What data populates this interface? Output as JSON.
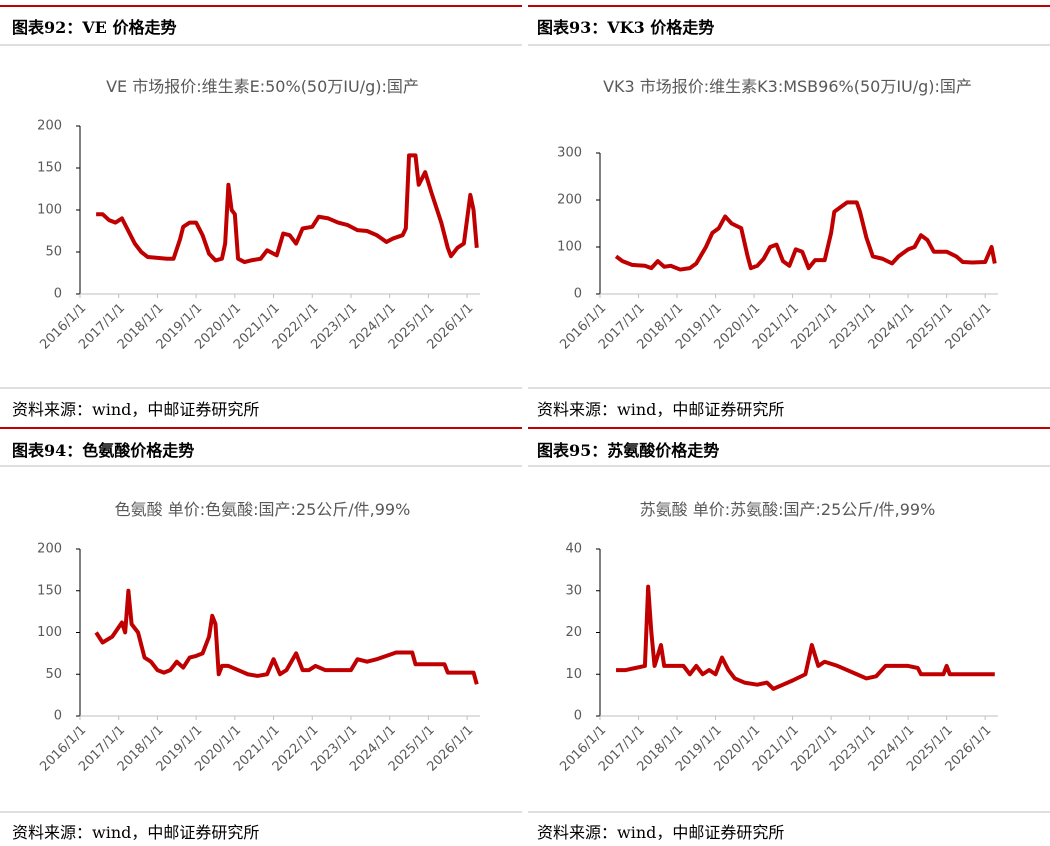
{
  "chart_data": [
    {
      "type": "line",
      "heading": "图表92：VE 价格走势",
      "title": "VE 市场报价:维生素E:50%(50万IU/g):国产",
      "source": "资料来源：wind，中邮证券研究所",
      "x": [
        "2016/6/1",
        "2016/8/1",
        "2016/10/1",
        "2016/12/1",
        "2017/2/1",
        "2017/4/1",
        "2017/6/1",
        "2017/8/1",
        "2017/10/1",
        "2018/1/1",
        "2018/4/1",
        "2018/6/1",
        "2018/8/1",
        "2018/9/1",
        "2018/11/1",
        "2019/1/1",
        "2019/3/1",
        "2019/5/1",
        "2019/7/1",
        "2019/9/1",
        "2019/10/1",
        "2019/11/1",
        "2019/12/1",
        "2020/1/1",
        "2020/2/1",
        "2020/4/1",
        "2020/6/1",
        "2020/9/1",
        "2020/11/1",
        "2021/2/1",
        "2021/4/1",
        "2021/6/1",
        "2021/8/1",
        "2021/10/1",
        "2022/1/1",
        "2022/3/1",
        "2022/6/1",
        "2022/9/1",
        "2022/12/1",
        "2023/3/1",
        "2023/6/1",
        "2023/9/1",
        "2023/12/1",
        "2024/2/1",
        "2024/5/1",
        "2024/6/1",
        "2024/7/1",
        "2024/9/1",
        "2024/10/1",
        "2024/12/1",
        "2025/2/1",
        "2025/5/1",
        "2025/7/1",
        "2025/8/1",
        "2025/10/1",
        "2025/12/1",
        "2026/2/1",
        "2026/3/1",
        "2026/4/1"
      ],
      "series": [
        {
          "color": "#c00000",
          "values": [
            95,
            95,
            88,
            85,
            90,
            75,
            60,
            50,
            44,
            43,
            42,
            42,
            65,
            80,
            85,
            85,
            70,
            48,
            40,
            42,
            60,
            130,
            100,
            95,
            42,
            38,
            40,
            42,
            52,
            46,
            72,
            70,
            60,
            78,
            80,
            92,
            90,
            85,
            82,
            76,
            75,
            70,
            62,
            66,
            70,
            78,
            165,
            165,
            130,
            145,
            120,
            85,
            55,
            45,
            55,
            60,
            118,
            100,
            55
          ]
        }
      ],
      "xlim": [
        "2016/1/1",
        "2026/5/1"
      ],
      "xticks": [
        "2016/1/1",
        "2017/1/1",
        "2018/1/1",
        "2019/1/1",
        "2020/1/1",
        "2021/1/1",
        "2022/1/1",
        "2023/1/1",
        "2024/1/1",
        "2025/1/1",
        "2026/1/1"
      ],
      "ylim": [
        0,
        200
      ],
      "yticks": [
        0,
        50,
        100,
        150,
        200
      ]
    },
    {
      "type": "line",
      "heading": "图表93：VK3 价格走势",
      "title": "VK3 市场报价:维生素K3:MSB96%(50万IU/g):国产",
      "source": "资料来源：wind，中邮证券研究所",
      "x": [
        "2016/6/1",
        "2016/8/1",
        "2016/11/1",
        "2017/3/1",
        "2017/5/1",
        "2017/7/1",
        "2017/9/1",
        "2017/11/1",
        "2018/2/1",
        "2018/5/1",
        "2018/7/1",
        "2018/10/1",
        "2018/12/1",
        "2019/2/1",
        "2019/4/1",
        "2019/6/1",
        "2019/9/1",
        "2019/11/1",
        "2019/12/1",
        "2020/2/1",
        "2020/4/1",
        "2020/6/1",
        "2020/8/1",
        "2020/10/1",
        "2020/12/1",
        "2021/2/1",
        "2021/4/1",
        "2021/6/1",
        "2021/8/1",
        "2021/11/1",
        "2022/1/1",
        "2022/2/1",
        "2022/4/1",
        "2022/6/1",
        "2022/9/1",
        "2022/10/1",
        "2022/12/1",
        "2023/2/1",
        "2023/5/1",
        "2023/8/1",
        "2023/10/1",
        "2024/1/1",
        "2024/3/1",
        "2024/5/1",
        "2024/7/1",
        "2024/9/1",
        "2025/1/1",
        "2025/4/1",
        "2025/6/1",
        "2025/9/1",
        "2026/1/1",
        "2026/3/1",
        "2026/4/1"
      ],
      "series": [
        {
          "color": "#c00000",
          "values": [
            80,
            70,
            62,
            60,
            55,
            70,
            58,
            60,
            52,
            55,
            65,
            100,
            130,
            140,
            165,
            150,
            140,
            80,
            55,
            60,
            75,
            100,
            105,
            70,
            60,
            95,
            90,
            55,
            72,
            72,
            130,
            175,
            185,
            195,
            195,
            175,
            120,
            80,
            75,
            65,
            80,
            95,
            100,
            125,
            115,
            90,
            90,
            80,
            68,
            67,
            68,
            100,
            65
          ]
        }
      ],
      "xlim": [
        "2016/1/1",
        "2026/5/1"
      ],
      "xticks": [
        "2016/1/1",
        "2017/1/1",
        "2018/1/1",
        "2019/1/1",
        "2020/1/1",
        "2021/1/1",
        "2022/1/1",
        "2023/1/1",
        "2024/1/1",
        "2025/1/1",
        "2026/1/1"
      ],
      "ylim": [
        0,
        300
      ],
      "yticks": [
        0,
        100,
        200,
        300
      ]
    },
    {
      "type": "line",
      "heading": "图表94：色氨酸价格走势",
      "title": "色氨酸 单价:色氨酸:国产:25公斤/件,99%",
      "source": "资料来源：wind，中邮证券研究所",
      "x": [
        "2016/6/1",
        "2016/8/1",
        "2016/11/1",
        "2017/2/1",
        "2017/3/1",
        "2017/4/1",
        "2017/5/1",
        "2017/7/1",
        "2017/9/1",
        "2017/11/1",
        "2018/1/1",
        "2018/3/1",
        "2018/5/1",
        "2018/7/1",
        "2018/9/1",
        "2018/11/1",
        "2019/1/1",
        "2019/3/1",
        "2019/5/1",
        "2019/6/1",
        "2019/7/1",
        "2019/8/1",
        "2019/9/1",
        "2019/11/1",
        "2020/2/1",
        "2020/5/1",
        "2020/8/1",
        "2020/11/1",
        "2021/1/1",
        "2021/3/1",
        "2021/5/1",
        "2021/8/1",
        "2021/10/1",
        "2021/12/1",
        "2022/2/1",
        "2022/5/1",
        "2022/9/1",
        "2023/1/1",
        "2023/3/1",
        "2023/6/1",
        "2023/9/1",
        "2023/12/1",
        "2024/3/1",
        "2024/8/1",
        "2024/9/1",
        "2025/6/1",
        "2025/7/1",
        "2026/3/1",
        "2026/4/1"
      ],
      "series": [
        {
          "color": "#c00000",
          "values": [
            100,
            88,
            95,
            112,
            100,
            150,
            110,
            100,
            70,
            65,
            55,
            52,
            55,
            65,
            58,
            70,
            72,
            75,
            95,
            120,
            110,
            50,
            60,
            60,
            55,
            50,
            48,
            50,
            68,
            50,
            55,
            75,
            55,
            55,
            60,
            55,
            55,
            55,
            68,
            65,
            68,
            72,
            76,
            76,
            62,
            62,
            52,
            52,
            38
          ]
        }
      ],
      "xlim": [
        "2016/1/1",
        "2026/5/1"
      ],
      "xticks": [
        "2016/1/1",
        "2017/1/1",
        "2018/1/1",
        "2019/1/1",
        "2020/1/1",
        "2021/1/1",
        "2022/1/1",
        "2023/1/1",
        "2024/1/1",
        "2025/1/1",
        "2026/1/1"
      ],
      "ylim": [
        0,
        200
      ],
      "yticks": [
        0,
        50,
        100,
        150,
        200
      ]
    },
    {
      "type": "line",
      "heading": "图表95：苏氨酸价格走势",
      "title": "苏氨酸 单价:苏氨酸:国产:25公斤/件,99%",
      "source": "资料来源：wind，中邮证券研究所",
      "x": [
        "2016/6/1",
        "2016/9/1",
        "2016/12/1",
        "2017/3/1",
        "2017/4/1",
        "2017/5/1",
        "2017/6/1",
        "2017/8/1",
        "2017/9/1",
        "2017/12/1",
        "2018/3/1",
        "2018/5/1",
        "2018/7/1",
        "2018/9/1",
        "2018/11/1",
        "2019/1/1",
        "2019/3/1",
        "2019/5/1",
        "2019/7/1",
        "2019/10/1",
        "2020/2/1",
        "2020/5/1",
        "2020/7/1",
        "2020/10/1",
        "2021/1/1",
        "2021/5/1",
        "2021/7/1",
        "2021/9/1",
        "2021/11/1",
        "2022/3/1",
        "2022/6/1",
        "2022/9/1",
        "2022/12/1",
        "2023/3/1",
        "2023/6/1",
        "2023/9/1",
        "2024/1/1",
        "2024/4/1",
        "2024/5/1",
        "2024/12/1",
        "2025/1/1",
        "2025/2/1",
        "2026/4/1"
      ],
      "series": [
        {
          "color": "#c00000",
          "values": [
            11,
            11,
            11.5,
            12,
            31,
            20,
            12,
            17,
            12,
            12,
            12,
            10,
            12,
            10,
            11,
            10,
            14,
            11,
            9,
            8,
            7.5,
            8,
            6.5,
            7.5,
            8.5,
            10,
            17,
            12,
            13,
            12,
            11,
            10,
            9,
            9.5,
            12,
            12,
            12,
            11.5,
            10,
            10,
            12,
            10,
            10
          ]
        }
      ],
      "xlim": [
        "2016/1/1",
        "2026/5/1"
      ],
      "xticks": [
        "2016/1/1",
        "2017/1/1",
        "2018/1/1",
        "2019/1/1",
        "2020/1/1",
        "2021/1/1",
        "2022/1/1",
        "2023/1/1",
        "2024/1/1",
        "2025/1/1",
        "2026/1/1"
      ],
      "ylim": [
        0,
        40
      ],
      "yticks": [
        0,
        10,
        20,
        30,
        40
      ]
    }
  ]
}
